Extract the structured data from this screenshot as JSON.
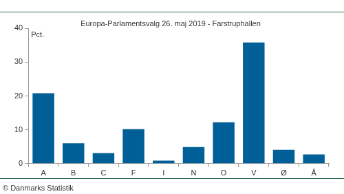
{
  "chart_data": {
    "type": "bar",
    "title": "Europa-Parlamentsvalg 26. maj 2019 - Farstruphallen",
    "y_label": "Pct.",
    "source": "© Danmarks Statistik",
    "categories": [
      "A",
      "B",
      "C",
      "F",
      "I",
      "N",
      "O",
      "V",
      "Ø",
      "Å"
    ],
    "values": [
      20.8,
      6.0,
      3.1,
      10.2,
      0.9,
      4.9,
      12.2,
      35.8,
      4.1,
      2.7
    ],
    "color": "#005f96",
    "ylim": [
      0,
      40
    ],
    "yticks": [
      0,
      10,
      20,
      30,
      40
    ],
    "grid": false
  }
}
